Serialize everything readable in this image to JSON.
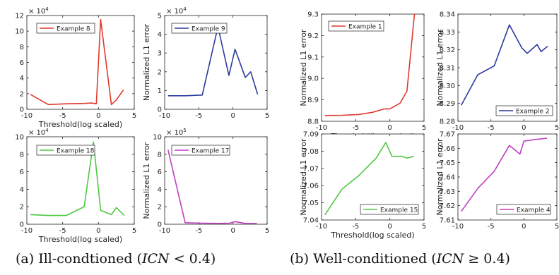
{
  "captions": {
    "a": {
      "prefix": "(a) Ill-condtioned (",
      "var": "ICN",
      "rel": " < 0.4)"
    },
    "b": {
      "prefix": "(b) Well-conditioned (",
      "var": "ICN",
      "rel": " ≥ 0.4)"
    }
  },
  "chart_data": [
    {
      "type": "line",
      "group": "a",
      "xlabel": "Threshold(log scaled)",
      "ylabel": "",
      "xlim": [
        -10,
        5
      ],
      "ylim": [
        0,
        120000
      ],
      "xticks": [
        -10,
        -5,
        0,
        5
      ],
      "yticks": [
        0,
        2,
        4,
        6,
        8,
        10,
        12
      ],
      "ytick_precision": 0,
      "exponent": "4",
      "series": [
        {
          "name": "Example 8",
          "color": "#e03a2c",
          "x": [
            -9.5,
            -7,
            -4.5,
            -2,
            -1,
            -0.3,
            0.3,
            1.8,
            2.5,
            3.5
          ],
          "y": [
            19000,
            6000,
            7000,
            7500,
            8000,
            7000,
            115000,
            6000,
            12000,
            25000
          ]
        }
      ]
    },
    {
      "type": "line",
      "group": "a",
      "xlabel": "",
      "ylabel": "",
      "xlim": [
        -10,
        5
      ],
      "ylim": [
        0,
        50000
      ],
      "xticks": [
        -10,
        -5,
        0,
        5
      ],
      "yticks": [
        0,
        1,
        2,
        3,
        4,
        5
      ],
      "ytick_precision": 0,
      "exponent": "4",
      "series": [
        {
          "name": "Example 9",
          "color": "#2c3a9c",
          "x": [
            -9.5,
            -7,
            -4.5,
            -2.2,
            -0.6,
            0.3,
            1.8,
            2.6,
            3.6
          ],
          "y": [
            7200,
            7200,
            7600,
            44000,
            18000,
            32000,
            17000,
            20000,
            8000
          ]
        }
      ]
    },
    {
      "type": "line",
      "group": "a",
      "xlabel": "Threshold(log scaled)",
      "ylabel": "",
      "xlim": [
        -10,
        5
      ],
      "ylim": [
        0,
        100000
      ],
      "xticks": [
        -10,
        -5,
        0,
        5
      ],
      "yticks": [
        0,
        2,
        4,
        6,
        8,
        10
      ],
      "ytick_precision": 0,
      "exponent": "4",
      "series": [
        {
          "name": "Example 18",
          "color": "#4fc842",
          "x": [
            -9.5,
            -7,
            -4.5,
            -2,
            -0.7,
            0.3,
            1.8,
            2.5,
            3.6
          ],
          "y": [
            11000,
            10000,
            10000,
            20000,
            94000,
            16000,
            11000,
            19000,
            10000
          ]
        }
      ]
    },
    {
      "type": "line",
      "group": "a",
      "xlabel": "",
      "ylabel": "",
      "xlim": [
        -10,
        5
      ],
      "ylim": [
        0,
        1000000
      ],
      "xticks": [
        -10,
        -5,
        0,
        5
      ],
      "yticks": [
        0,
        2,
        4,
        6,
        8,
        10
      ],
      "ytick_precision": 0,
      "exponent": "5",
      "series": [
        {
          "name": "Example 17",
          "color": "#bf3fbf",
          "x": [
            -9.5,
            -7,
            -4.5,
            -2,
            -0.5,
            0.3,
            1.8,
            3.5
          ],
          "y": [
            850000,
            18000,
            12000,
            10000,
            12000,
            30000,
            10000,
            9000
          ]
        }
      ]
    },
    {
      "type": "line",
      "group": "b",
      "xlabel": "Threshold(log scaled)",
      "ylabel": "",
      "xlim": [
        -10,
        5
      ],
      "ylim": [
        8.8,
        9.3
      ],
      "xticks": [
        -10,
        -5,
        0,
        5
      ],
      "yticks": [
        8.8,
        8.9,
        9.0,
        9.1,
        9.2,
        9.3
      ],
      "ytick_precision": 1,
      "series": [
        {
          "name": "Example 1",
          "color": "#e03a2c",
          "x": [
            -9.5,
            -7,
            -4.5,
            -2.5,
            -0.8,
            0,
            1.5,
            2.5,
            3.6
          ],
          "y": [
            8.827,
            8.828,
            8.832,
            8.842,
            8.858,
            8.858,
            8.885,
            8.94,
            9.3
          ]
        }
      ]
    },
    {
      "type": "line",
      "group": "b",
      "xlabel": "",
      "ylabel": "",
      "xlim": [
        -10,
        5
      ],
      "ylim": [
        8.28,
        8.34
      ],
      "xticks": [
        -10,
        -5,
        0,
        5
      ],
      "yticks": [
        8.28,
        8.29,
        8.3,
        8.31,
        8.32,
        8.33,
        8.34
      ],
      "ytick_precision": 2,
      "series": [
        {
          "name": "Example 2",
          "color": "#2c3a9c",
          "x": [
            -9.5,
            -7,
            -4.5,
            -2.2,
            -0.3,
            0.5,
            2,
            2.6,
            3.6
          ],
          "y": [
            8.289,
            8.306,
            8.311,
            8.334,
            8.321,
            8.318,
            8.323,
            8.319,
            8.322
          ]
        }
      ]
    },
    {
      "type": "line",
      "group": "b",
      "xlabel": "Threshold(log scaled)",
      "ylabel": "",
      "xlim": [
        -10,
        5
      ],
      "ylim": [
        7.04,
        7.09
      ],
      "xticks": [
        -10,
        -5,
        0,
        5
      ],
      "yticks": [
        7.04,
        7.05,
        7.06,
        7.07,
        7.08,
        7.09
      ],
      "ytick_precision": 2,
      "series": [
        {
          "name": "Example 15",
          "color": "#4fc842",
          "x": [
            -9.5,
            -7,
            -4.5,
            -2,
            -0.6,
            0.3,
            1.8,
            2.5,
            3.5
          ],
          "y": [
            7.043,
            7.058,
            7.066,
            7.076,
            7.085,
            7.077,
            7.077,
            7.076,
            7.077
          ]
        }
      ]
    },
    {
      "type": "line",
      "group": "b",
      "xlabel": "",
      "ylabel": "",
      "xlim": [
        -10,
        5
      ],
      "ylim": [
        7.61,
        7.67
      ],
      "xticks": [
        -10,
        -5,
        0,
        5
      ],
      "yticks": [
        7.61,
        7.62,
        7.63,
        7.64,
        7.65,
        7.66,
        7.67
      ],
      "ytick_precision": 2,
      "series": [
        {
          "name": "Example 4",
          "color": "#bf3fbf",
          "x": [
            -9.5,
            -7,
            -4.5,
            -2.2,
            -0.6,
            0,
            1.5,
            2.5,
            3.5
          ],
          "y": [
            7.616,
            7.632,
            7.644,
            7.662,
            7.656,
            7.665,
            7.666,
            7.6665,
            7.667
          ]
        }
      ]
    }
  ],
  "shared_labels": {
    "ylabel": "Normalized L1 error"
  }
}
